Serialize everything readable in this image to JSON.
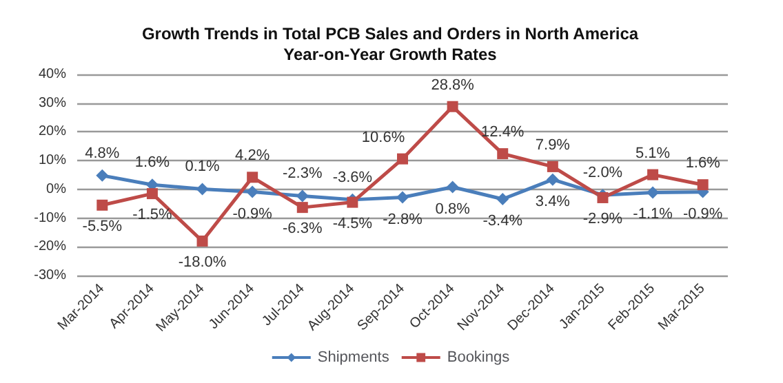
{
  "chart_data": {
    "type": "line",
    "title": "Growth Trends in Total PCB Sales and Orders in North America\nYear-on-Year Growth Rates",
    "categories": [
      "Mar-2014",
      "Apr-2014",
      "May-2014",
      "Jun-2014",
      "Jul-2014",
      "Aug-2014",
      "Sep-2014",
      "Oct-2014",
      "Nov-2014",
      "Dec-2014",
      "Jan-2015",
      "Feb-2015",
      "Mar-2015"
    ],
    "series": [
      {
        "name": "Shipments",
        "color": "#4a7ebb",
        "marker": "diamond",
        "values": [
          4.8,
          1.6,
          0.1,
          -0.9,
          -2.3,
          -3.6,
          -2.8,
          0.8,
          -3.4,
          3.4,
          -2.0,
          -1.1,
          -0.9
        ],
        "value_labels": [
          "4.8%",
          "1.6%",
          "0.1%",
          "-0.9%",
          "-2.3%",
          "-3.6%",
          "-2.8%",
          "0.8%",
          "-3.4%",
          "3.4%",
          "-2.0%",
          "-1.1%",
          "-0.9%"
        ]
      },
      {
        "name": "Bookings",
        "color": "#be4b48",
        "marker": "square",
        "values": [
          -5.5,
          -1.5,
          -18.0,
          4.2,
          -6.3,
          -4.5,
          10.6,
          28.8,
          12.4,
          7.9,
          -2.9,
          5.1,
          1.6
        ],
        "value_labels": [
          "-5.5%",
          "-1.5%",
          "-18.0%",
          "4.2%",
          "-6.3%",
          "-4.5%",
          "10.6%",
          "28.8%",
          "12.4%",
          "7.9%",
          "-2.9%",
          "5.1%",
          "1.6%"
        ]
      }
    ],
    "ylim": [
      -30,
      40
    ],
    "yticks": [
      {
        "value": -30,
        "label": "-30%"
      },
      {
        "value": -20,
        "label": "-20%"
      },
      {
        "value": -10,
        "label": "-10%"
      },
      {
        "value": 0,
        "label": "0%"
      },
      {
        "value": 10,
        "label": "10%"
      },
      {
        "value": 20,
        "label": "20%"
      },
      {
        "value": 30,
        "label": "30%"
      },
      {
        "value": 40,
        "label": "40%"
      }
    ],
    "grid": "y",
    "legend": "bottom",
    "line_style": "solid"
  }
}
